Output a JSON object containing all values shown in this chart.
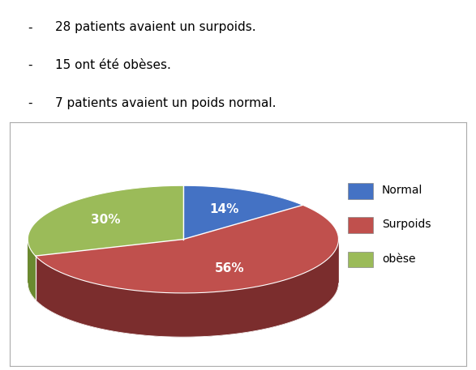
{
  "bullet_lines": [
    "28 patients avaient un surpoids.",
    "15 ont été obèses.",
    "7 patients avaient un poids normal."
  ],
  "labels": [
    "Normal",
    "Surpoids",
    "obèse"
  ],
  "values": [
    14,
    56,
    30
  ],
  "colors_top": [
    "#4472C4",
    "#C0504D",
    "#9BBB59"
  ],
  "colors_side": [
    "#2F4F8F",
    "#7B2D2D",
    "#6A8A2F"
  ],
  "pct_labels": [
    "14%",
    "56%",
    "30%"
  ],
  "legend_labels": [
    "Normal",
    "Surpoids",
    "obèse"
  ],
  "background_color": "#FFFFFF",
  "text_color": "#000000",
  "font_size_bullet": 11,
  "font_size_pct": 11,
  "font_size_legend": 10,
  "figure_width": 5.87,
  "figure_height": 4.57,
  "dpi": 100
}
